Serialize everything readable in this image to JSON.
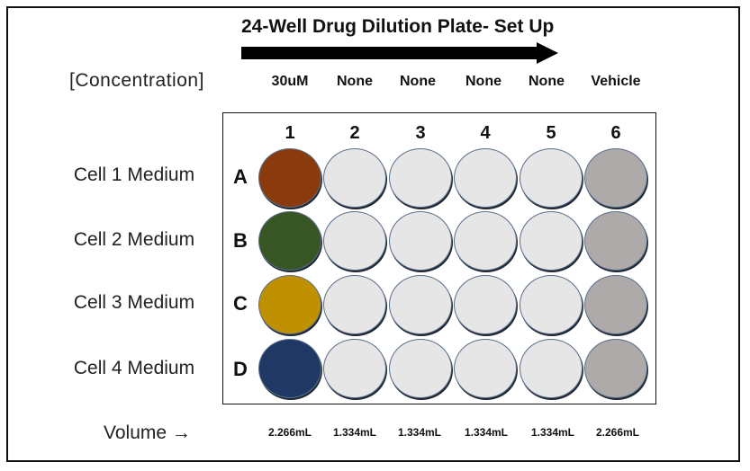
{
  "title": "24-Well Drug Dilution Plate- Set Up",
  "concentration_label": "[Concentration]",
  "volume_label": "Volume →",
  "columns": [
    {
      "number": "1",
      "concentration": "30uM",
      "volume": "2.266mL"
    },
    {
      "number": "2",
      "concentration": "None",
      "volume": "1.334mL"
    },
    {
      "number": "3",
      "concentration": "None",
      "volume": "1.334mL"
    },
    {
      "number": "4",
      "concentration": "None",
      "volume": "1.334mL"
    },
    {
      "number": "5",
      "concentration": "None",
      "volume": "1.334mL"
    },
    {
      "number": "6",
      "concentration": "Vehicle",
      "volume": "2.266mL"
    }
  ],
  "rows": [
    {
      "letter": "A",
      "label": "Cell 1 Medium",
      "drug_color": "#8B3A0E"
    },
    {
      "letter": "B",
      "label": "Cell 2 Medium",
      "drug_color": "#375623"
    },
    {
      "letter": "C",
      "label": "Cell 3 Medium",
      "drug_color": "#BF9000"
    },
    {
      "letter": "D",
      "label": "Cell 4 Medium",
      "drug_color": "#1F3864"
    }
  ],
  "colors": {
    "empty_well": "#E7E6E6",
    "vehicle_well": "#AEAAAA",
    "arrow": "#000000"
  }
}
